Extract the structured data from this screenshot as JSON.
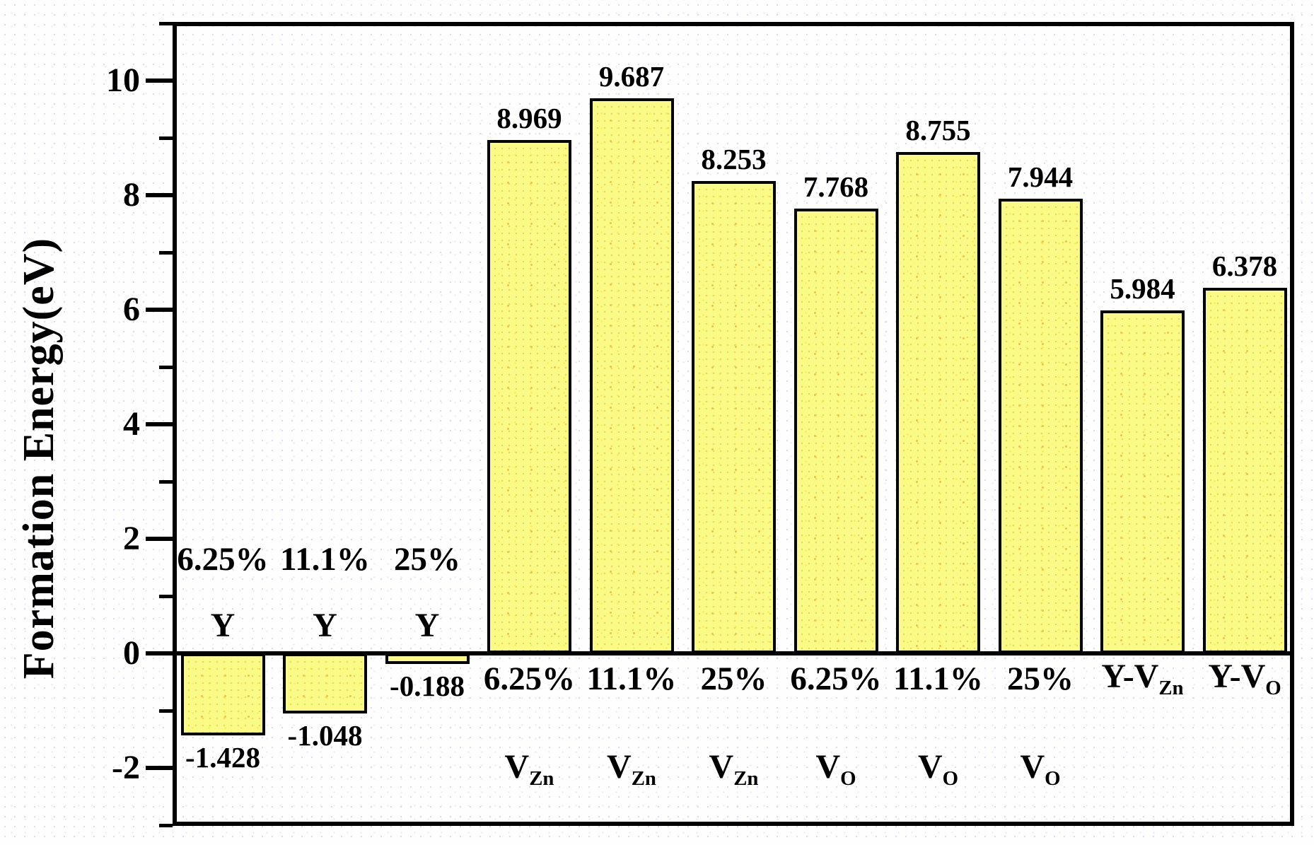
{
  "chart_data": {
    "type": "bar",
    "title": "",
    "ylabel": "Formation Energy(eV)",
    "xlabel": "",
    "ylim": [
      -3,
      11
    ],
    "grid": false,
    "legend_position": "none",
    "bar_fill_color": "#fafa87",
    "bar_border_color": "#000000",
    "axis_color": "#000000",
    "yticks_major": [
      {
        "value": -2,
        "label": "-2"
      },
      {
        "value": 0,
        "label": "0"
      },
      {
        "value": 2,
        "label": "2"
      },
      {
        "value": 4,
        "label": "4"
      },
      {
        "value": 6,
        "label": "6"
      },
      {
        "value": 8,
        "label": "8"
      },
      {
        "value": 10,
        "label": "10"
      }
    ],
    "yticks_minor": [
      -3,
      -1,
      1,
      3,
      5,
      7,
      9,
      11
    ],
    "bars": [
      {
        "species": "Y",
        "species_sub": "",
        "concentration": "6.25%",
        "value": -1.428,
        "value_label": "-1.428"
      },
      {
        "species": "Y",
        "species_sub": "",
        "concentration": "11.1%",
        "value": -1.048,
        "value_label": "-1.048"
      },
      {
        "species": "Y",
        "species_sub": "",
        "concentration": "25%",
        "value": -0.188,
        "value_label": "-0.188"
      },
      {
        "species": "V",
        "species_sub": "Zn",
        "concentration": "6.25%",
        "value": 8.969,
        "value_label": "8.969"
      },
      {
        "species": "V",
        "species_sub": "Zn",
        "concentration": "11.1%",
        "value": 9.687,
        "value_label": "9.687"
      },
      {
        "species": "V",
        "species_sub": "Zn",
        "concentration": "25%",
        "value": 8.253,
        "value_label": "8.253"
      },
      {
        "species": "V",
        "species_sub": "O",
        "concentration": "6.25%",
        "value": 7.768,
        "value_label": "7.768"
      },
      {
        "species": "V",
        "species_sub": "O",
        "concentration": "11.1%",
        "value": 8.755,
        "value_label": "8.755"
      },
      {
        "species": "V",
        "species_sub": "O",
        "concentration": "25%",
        "value": 7.944,
        "value_label": "7.944"
      },
      {
        "species": "Y-V",
        "species_sub": "Zn",
        "concentration": "",
        "value": 5.984,
        "value_label": "5.984"
      },
      {
        "species": "Y-V",
        "species_sub": "O",
        "concentration": "",
        "value": 6.378,
        "value_label": "6.378"
      }
    ]
  }
}
